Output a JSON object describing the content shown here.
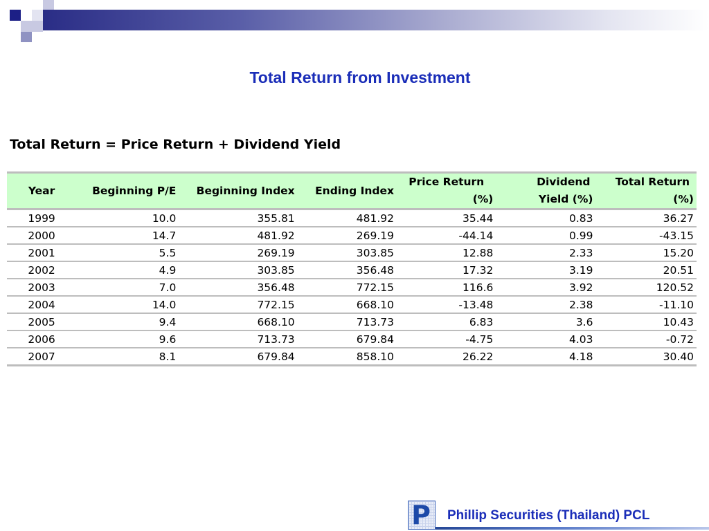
{
  "title": "Total Return from Investment",
  "formula": "Total Return = Price Return + Dividend Yield",
  "table": {
    "headers": {
      "year": "Year",
      "beginning_pe": "Beginning P/E",
      "beginning_index": "Beginning Index",
      "ending_index": "Ending Index",
      "price_return_1": "Price Return",
      "price_return_2": "(%)",
      "dividend_yield_1": "Dividend",
      "dividend_yield_2": "Yield (%)",
      "total_return_1": "Total Return",
      "total_return_2": "(%)"
    },
    "rows": [
      {
        "year": "1999",
        "beginning_pe": "10.0",
        "beginning_index": "355.81",
        "ending_index": "481.92",
        "price_return": "35.44",
        "dividend_yield": "0.83",
        "total_return": "36.27"
      },
      {
        "year": "2000",
        "beginning_pe": "14.7",
        "beginning_index": "481.92",
        "ending_index": "269.19",
        "price_return": "-44.14",
        "dividend_yield": "0.99",
        "total_return": "-43.15"
      },
      {
        "year": "2001",
        "beginning_pe": "5.5",
        "beginning_index": "269.19",
        "ending_index": "303.85",
        "price_return": "12.88",
        "dividend_yield": "2.33",
        "total_return": "15.20"
      },
      {
        "year": "2002",
        "beginning_pe": "4.9",
        "beginning_index": "303.85",
        "ending_index": "356.48",
        "price_return": "17.32",
        "dividend_yield": "3.19",
        "total_return": "20.51"
      },
      {
        "year": "2003",
        "beginning_pe": "7.0",
        "beginning_index": "356.48",
        "ending_index": "772.15",
        "price_return": "116.6",
        "dividend_yield": "3.92",
        "total_return": "120.52"
      },
      {
        "year": "2004",
        "beginning_pe": "14.0",
        "beginning_index": "772.15",
        "ending_index": "668.10",
        "price_return": "-13.48",
        "dividend_yield": "2.38",
        "total_return": "-11.10"
      },
      {
        "year": "2005",
        "beginning_pe": "9.4",
        "beginning_index": "668.10",
        "ending_index": "713.73",
        "price_return": "6.83",
        "dividend_yield": "3.6",
        "total_return": "10.43"
      },
      {
        "year": "2006",
        "beginning_pe": "9.6",
        "beginning_index": "713.73",
        "ending_index": "679.84",
        "price_return": "-4.75",
        "dividend_yield": "4.03",
        "total_return": "-0.72"
      },
      {
        "year": "2007",
        "beginning_pe": "8.1",
        "beginning_index": "679.84",
        "ending_index": "858.10",
        "price_return": "26.22",
        "dividend_yield": "4.18",
        "total_return": "30.40"
      }
    ]
  },
  "footer": {
    "logo_letter": "P",
    "company": "Phillip Securities (Thailand) PCL"
  },
  "colors": {
    "title": "#1a2db8",
    "header_bg": "#ccffcc",
    "rule": "#bdbdbd",
    "banner_dark": "#2a2d86",
    "banner_light": "#a9abd0"
  }
}
